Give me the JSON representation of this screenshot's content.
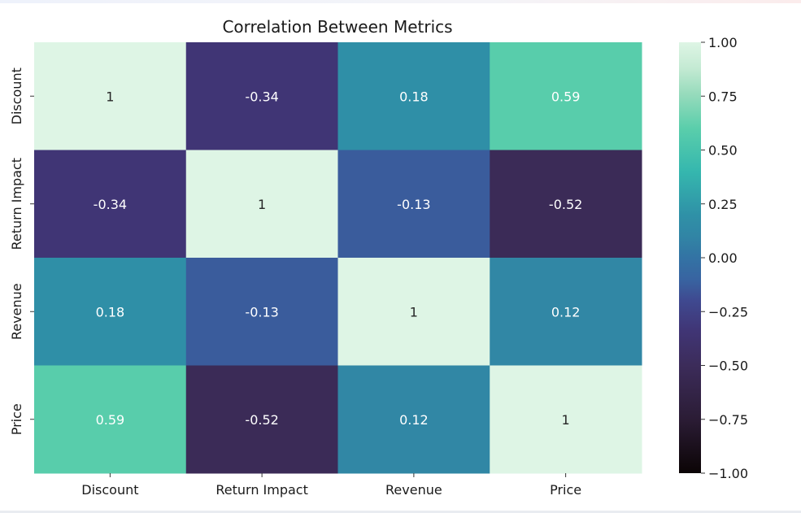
{
  "chart_data": {
    "type": "heatmap",
    "title": "Correlation Between Metrics",
    "xlabel": "",
    "ylabel": "",
    "rows": [
      "Discount",
      "Return Impact",
      "Revenue",
      "Price"
    ],
    "columns": [
      "Discount",
      "Return Impact",
      "Revenue",
      "Price"
    ],
    "values": [
      [
        1,
        -0.34,
        0.18,
        0.59
      ],
      [
        -0.34,
        1,
        -0.13,
        -0.52
      ],
      [
        0.18,
        -0.13,
        1,
        0.12
      ],
      [
        0.59,
        -0.52,
        0.12,
        1
      ]
    ],
    "labels": [
      [
        "1",
        "-0.34",
        "0.18",
        "0.59"
      ],
      [
        "-0.34",
        "1",
        "-0.13",
        "-0.52"
      ],
      [
        "0.18",
        "-0.13",
        "1",
        "0.12"
      ],
      [
        "0.59",
        "-0.52",
        "0.12",
        "1"
      ]
    ],
    "vmin": -1,
    "vmax": 1,
    "colormap": "mako",
    "colorbar": {
      "ticks": [
        1.0,
        0.75,
        0.5,
        0.25,
        0.0,
        -0.25,
        -0.5,
        -0.75,
        -1.0
      ],
      "tick_labels": [
        "1.00",
        "0.75",
        "0.50",
        "0.25",
        "0.00",
        "−0.25",
        "−0.50",
        "−0.75",
        "−1.00"
      ]
    },
    "annotation_colors": {
      "light_cell_text": "#262626",
      "dark_cell_text": "#ffffff"
    }
  }
}
